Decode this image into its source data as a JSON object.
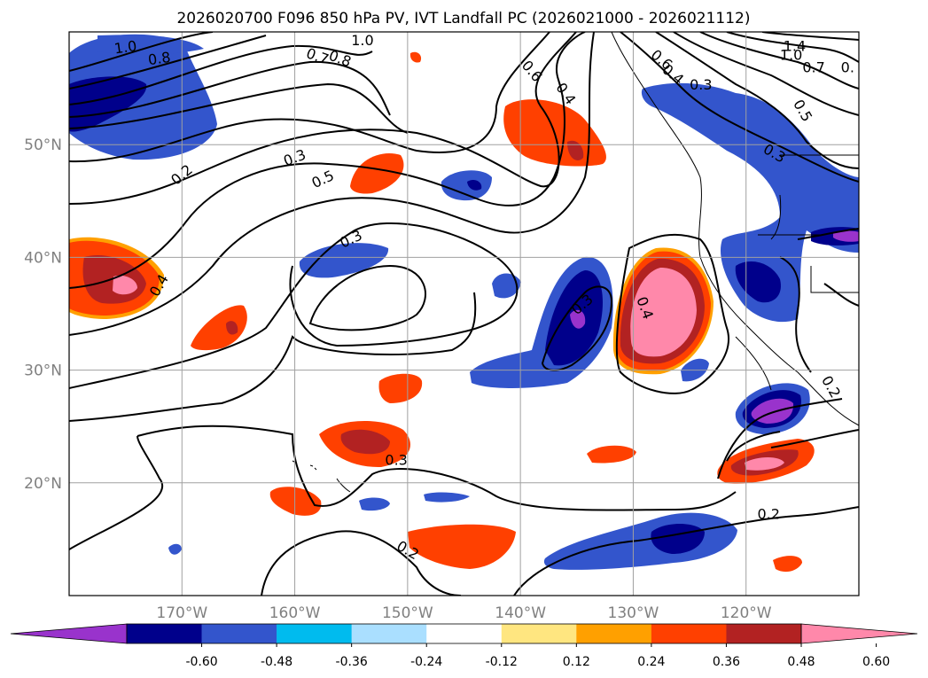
{
  "title": "2026020700 F096 850 hPa PV, IVT Landfall PC (2026021000 - 2026021112)",
  "map": {
    "lon_range": [
      -180,
      -110
    ],
    "lat_range": [
      10,
      60
    ],
    "lon_ticks": [
      {
        "lon": -170,
        "label": "170°W"
      },
      {
        "lon": -160,
        "label": "160°W"
      },
      {
        "lon": -150,
        "label": "150°W"
      },
      {
        "lon": -140,
        "label": "140°W"
      },
      {
        "lon": -130,
        "label": "130°W"
      },
      {
        "lon": -120,
        "label": "120°W"
      }
    ],
    "lat_ticks": [
      {
        "lat": 50,
        "label": "50°N"
      },
      {
        "lat": 40,
        "label": "40°N"
      },
      {
        "lat": 30,
        "label": "30°N"
      },
      {
        "lat": 20,
        "label": "20°N"
      }
    ],
    "grid_color": "#a0a0a0"
  },
  "colorbar": {
    "colors": [
      "#9933cc",
      "#00008b",
      "#3355cc",
      "#00bbee",
      "#aadfff",
      "#ffffff",
      "#ffe680",
      "#ffa000",
      "#ff4000",
      "#b22222",
      "#ff88aa"
    ],
    "ticks": [
      "-0.60",
      "-0.48",
      "-0.36",
      "-0.24",
      "-0.12",
      "0.12",
      "0.24",
      "0.36",
      "0.48",
      "0.60"
    ]
  },
  "contour_labels": [
    {
      "text": "1.0",
      "lon": -175,
      "lat": 58.6,
      "angle": -8
    },
    {
      "text": "0.8",
      "lon": -172,
      "lat": 57.6,
      "angle": -8
    },
    {
      "text": "0.7",
      "lon": -158,
      "lat": 57.8,
      "angle": 20
    },
    {
      "text": "1.0",
      "lon": -154,
      "lat": 59.2,
      "angle": 0
    },
    {
      "text": "0.8",
      "lon": -156,
      "lat": 57.6,
      "angle": 20
    },
    {
      "text": "0.6",
      "lon": -139,
      "lat": 56.5,
      "angle": 50
    },
    {
      "text": "0.4",
      "lon": -136,
      "lat": 54.5,
      "angle": 55
    },
    {
      "text": "1.4",
      "lon": -115.7,
      "lat": 58.7,
      "angle": 0
    },
    {
      "text": "1.0",
      "lon": -116,
      "lat": 57.9,
      "angle": 0
    },
    {
      "text": "0.7",
      "lon": -114,
      "lat": 56.8,
      "angle": 0
    },
    {
      "text": "0.",
      "lon": -111,
      "lat": 56.8,
      "angle": 0
    },
    {
      "text": "0.6",
      "lon": -127.5,
      "lat": 57.5,
      "angle": 40
    },
    {
      "text": "0.4",
      "lon": -126.5,
      "lat": 56.2,
      "angle": 40
    },
    {
      "text": "0.3",
      "lon": -124,
      "lat": 55.3,
      "angle": 0
    },
    {
      "text": "0.5",
      "lon": -115,
      "lat": 53,
      "angle": 60
    },
    {
      "text": "0.3",
      "lon": -117.5,
      "lat": 49.2,
      "angle": 30
    },
    {
      "text": "0.2",
      "lon": -170,
      "lat": 47.3,
      "angle": -40
    },
    {
      "text": "0.3",
      "lon": -160,
      "lat": 48.8,
      "angle": -20
    },
    {
      "text": "0.5",
      "lon": -157.5,
      "lat": 46.9,
      "angle": -25
    },
    {
      "text": "0.3",
      "lon": -155,
      "lat": 41.6,
      "angle": -25
    },
    {
      "text": "0.4",
      "lon": -172,
      "lat": 37.5,
      "angle": -60
    },
    {
      "text": "0.3",
      "lon": -134.5,
      "lat": 35.8,
      "angle": -40
    },
    {
      "text": "0.4",
      "lon": -129,
      "lat": 35.5,
      "angle": 70
    },
    {
      "text": "0.2",
      "lon": -112.5,
      "lat": 28.5,
      "angle": 60
    },
    {
      "text": "0.3",
      "lon": -151,
      "lat": 22,
      "angle": 0
    },
    {
      "text": "0.2",
      "lon": -150,
      "lat": 14,
      "angle": 30
    },
    {
      "text": "0.2",
      "lon": -118,
      "lat": 17.2,
      "angle": 0
    }
  ]
}
